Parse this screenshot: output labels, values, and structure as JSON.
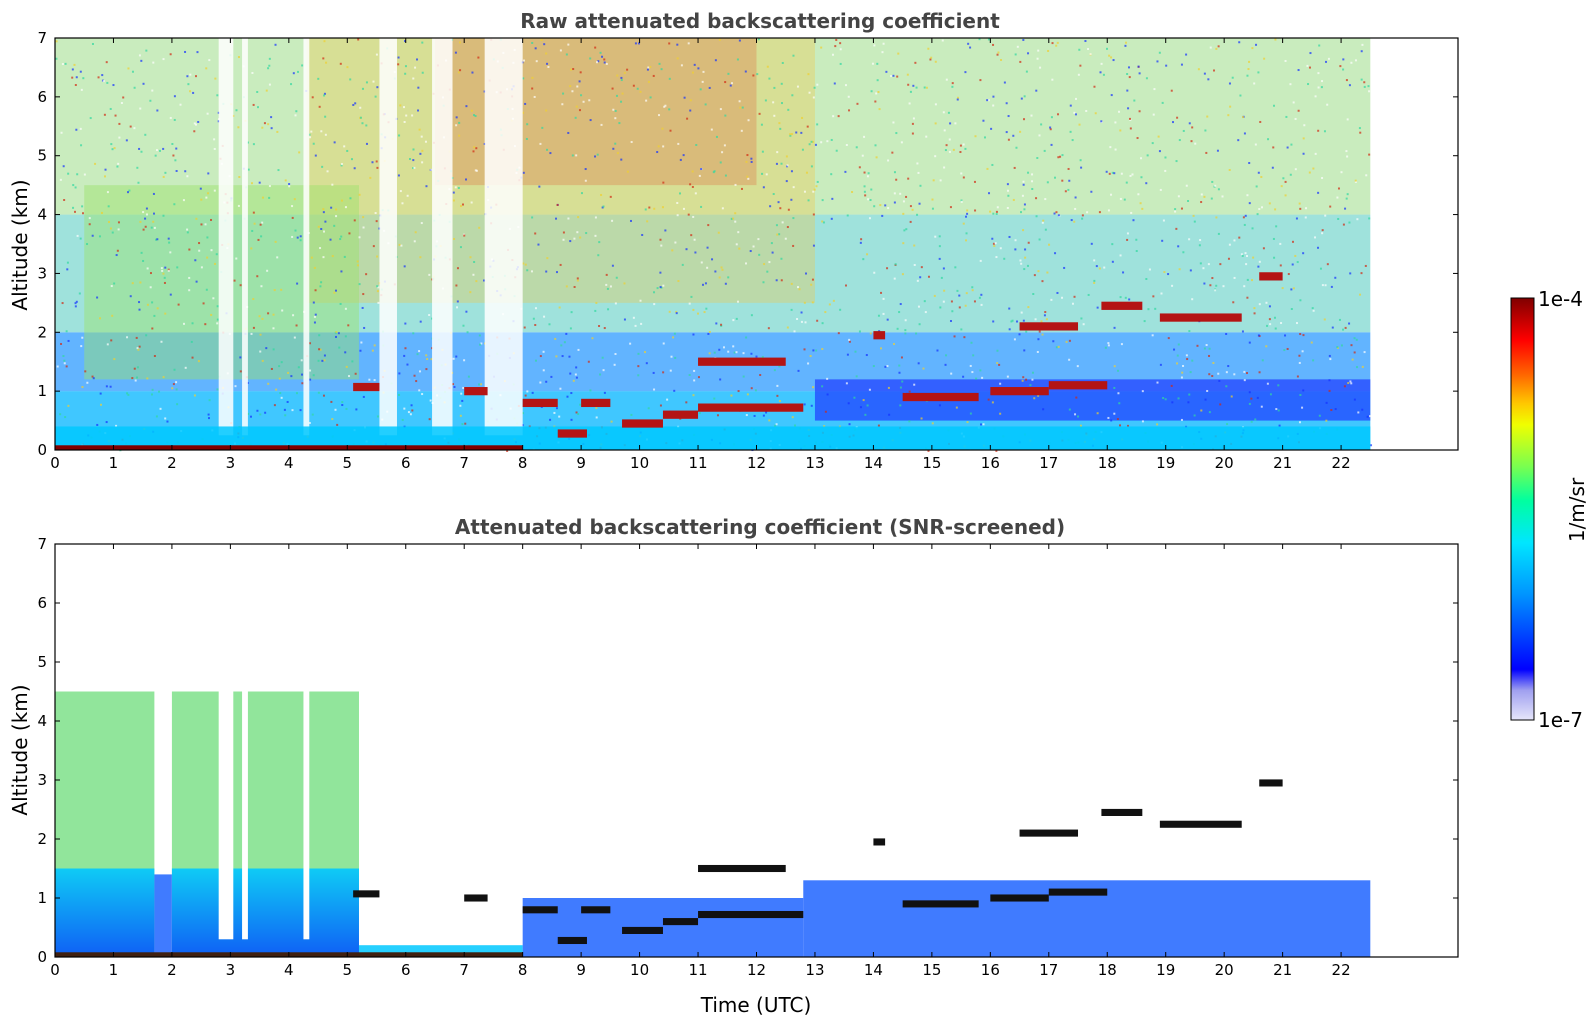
{
  "chart_data": [
    {
      "type": "heatmap",
      "title": "Raw attenuated backscattering coefficient",
      "xlabel": "",
      "ylabel": "Altitude (km)",
      "xlim": [
        0,
        24
      ],
      "ylim": [
        0,
        7
      ],
      "xticks": [
        "0",
        "1",
        "2",
        "3",
        "4",
        "5",
        "6",
        "7",
        "8",
        "9",
        "10",
        "11",
        "12",
        "13",
        "14",
        "15",
        "16",
        "17",
        "18",
        "19",
        "20",
        "21",
        "22"
      ],
      "yticks": [
        "0",
        "1",
        "2",
        "3",
        "4",
        "5",
        "6",
        "7"
      ],
      "data_extent_x": [
        0,
        22.5
      ],
      "features": {
        "clear_columns_hours": [
          [
            2.8,
            3.05
          ],
          [
            3.2,
            3.3
          ],
          [
            4.25,
            4.35
          ],
          [
            5.55,
            5.85
          ],
          [
            6.45,
            6.8
          ],
          [
            7.35,
            8.0
          ]
        ],
        "cloud_layers": [
          {
            "time": [
              5.1,
              5.55
            ],
            "altitude_km": 1.07
          },
          {
            "time": [
              7.0,
              7.4
            ],
            "altitude_km": 1.0
          },
          {
            "time": [
              8.0,
              8.6
            ],
            "altitude_km": 0.8
          },
          {
            "time": [
              8.6,
              9.1
            ],
            "altitude_km": 0.28
          },
          {
            "time": [
              9.0,
              9.5
            ],
            "altitude_km": 0.8
          },
          {
            "time": [
              9.7,
              10.4
            ],
            "altitude_km": 0.45
          },
          {
            "time": [
              10.4,
              11.0
            ],
            "altitude_km": 0.6
          },
          {
            "time": [
              11.0,
              12.8
            ],
            "altitude_km": 0.72
          },
          {
            "time": [
              11.0,
              12.5
            ],
            "altitude_km": 1.5
          },
          {
            "time": [
              14.0,
              14.2
            ],
            "altitude_km": 1.95
          },
          {
            "time": [
              14.5,
              15.8
            ],
            "altitude_km": 0.9
          },
          {
            "time": [
              16.0,
              17.0
            ],
            "altitude_km": 1.0
          },
          {
            "time": [
              16.5,
              17.5
            ],
            "altitude_km": 2.1
          },
          {
            "time": [
              17.0,
              18.0
            ],
            "altitude_km": 1.1
          },
          {
            "time": [
              17.9,
              18.6
            ],
            "altitude_km": 2.45
          },
          {
            "time": [
              18.9,
              20.3
            ],
            "altitude_km": 2.25
          },
          {
            "time": [
              20.6,
              21.0
            ],
            "altitude_km": 2.95
          }
        ]
      }
    },
    {
      "type": "heatmap",
      "title": "Attenuated backscattering coefficient (SNR-screened)",
      "xlabel": "Time (UTC)",
      "ylabel": "Altitude (km)",
      "xlim": [
        0,
        24
      ],
      "ylim": [
        0,
        7
      ],
      "xticks": [
        "0",
        "1",
        "2",
        "3",
        "4",
        "5",
        "6",
        "7",
        "8",
        "9",
        "10",
        "11",
        "12",
        "13",
        "14",
        "15",
        "16",
        "17",
        "18",
        "19",
        "20",
        "21",
        "22"
      ],
      "yticks": [
        "0",
        "1",
        "2",
        "3",
        "4",
        "5",
        "6",
        "7"
      ],
      "data_extent_x": [
        0,
        22.5
      ],
      "features": {
        "aerosol_layer_top_km": [
          {
            "time": [
              0,
              1.7
            ],
            "top": 4.5
          },
          {
            "time": [
              1.7,
              2.0
            ],
            "top": 1.4
          },
          {
            "time": [
              2.0,
              5.2
            ],
            "top": 4.5
          },
          {
            "time": [
              5.2,
              8.0
            ],
            "top": 0.2
          },
          {
            "time": [
              8.0,
              12.8
            ],
            "top": 1.0
          },
          {
            "time": [
              12.8,
              22.5
            ],
            "top": 1.3
          }
        ]
      }
    }
  ],
  "colorbar": {
    "label": "1/m/sr",
    "max_label": "1e-4",
    "min_label": "1e-7",
    "scale": "log",
    "colors": [
      "#e6e6fa",
      "#c8c8f5",
      "#a0a0f0",
      "#0000ff",
      "#0064ff",
      "#00c8ff",
      "#00ffc8",
      "#64ff64",
      "#c8ff00",
      "#ffff00",
      "#ffc800",
      "#ff6400",
      "#ff0000",
      "#c80000",
      "#800000"
    ]
  }
}
